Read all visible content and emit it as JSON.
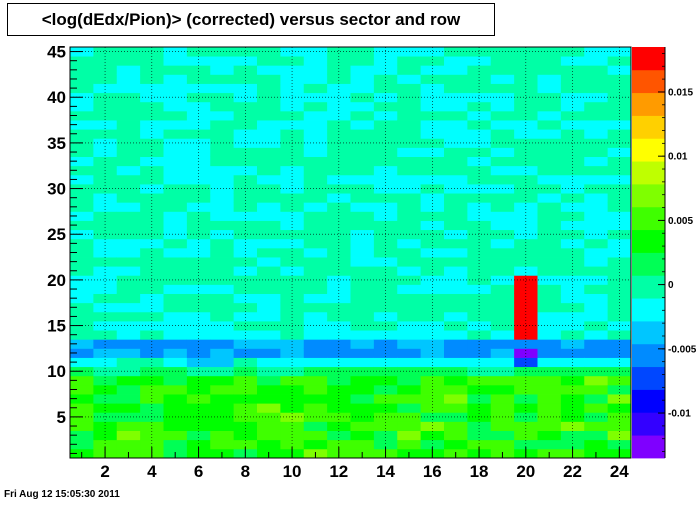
{
  "chart_data": {
    "type": "heatmap",
    "title": "<log(dEdx/Pion)> (corrected) versus sector and row",
    "xlabel": "",
    "ylabel": "",
    "xlim": [
      0.5,
      24.5
    ],
    "ylim": [
      0.5,
      45.5
    ],
    "x_ticks": [
      2,
      4,
      6,
      8,
      10,
      12,
      14,
      16,
      18,
      20,
      22,
      24
    ],
    "y_ticks": [
      5,
      10,
      15,
      20,
      25,
      30,
      35,
      40,
      45
    ],
    "z_range": [
      -0.0135,
      0.0185
    ],
    "colorbar_ticks": [
      -0.01,
      -0.005,
      0,
      0.005,
      0.01,
      0.015
    ],
    "colorbar_labels": [
      "-0.01",
      "-0.005",
      "0",
      "0.005",
      "0.01",
      "0.015"
    ],
    "colorbar_colors": [
      "#7f00ff",
      "#3300ff",
      "#0000ff",
      "#0047ff",
      "#008bff",
      "#00c6ff",
      "#00ffff",
      "#00ffa6",
      "#00ff55",
      "#00ff00",
      "#3fff00",
      "#7fff00",
      "#bfff00",
      "#ffff00",
      "#ffd000",
      "#ff9b00",
      "#ff5500",
      "#ff0000"
    ],
    "grid": true,
    "summary_values": {
      "rows_1_to_9": 0.004,
      "row_10": 0.001,
      "row_11": -0.002,
      "rows_12_13": -0.005,
      "row_14": -0.0015,
      "rows_15_to_45": -0.0008
    },
    "hot_cells": [
      {
        "sector": 20,
        "rows": [
          14,
          20
        ],
        "value": 0.0185
      },
      {
        "sector": 20,
        "rows": [
          12,
          12
        ],
        "value": -0.012
      },
      {
        "sector": 20,
        "rows": [
          11,
          11
        ],
        "value": -0.007
      }
    ]
  },
  "timestamp": "Fri Aug 12 15:05:30 2011"
}
